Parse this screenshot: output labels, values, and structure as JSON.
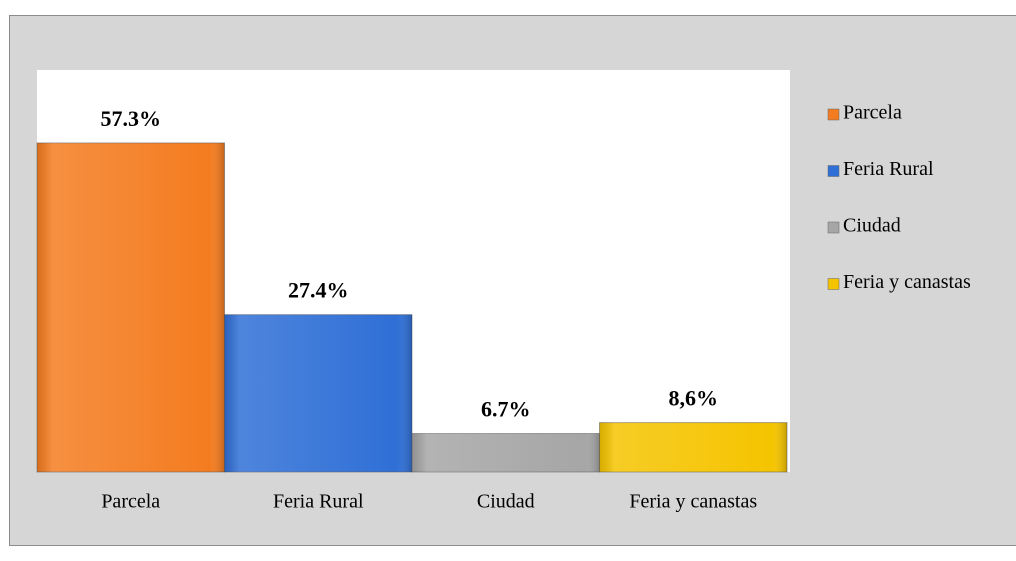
{
  "chart_data": {
    "type": "bar",
    "categories": [
      "Parcela",
      "Feria Rural",
      "Ciudad",
      "Feria y canastas"
    ],
    "values": [
      57.3,
      27.4,
      6.7,
      8.6
    ],
    "value_labels": [
      "57.3%",
      "27.4%",
      "6.7%",
      "8,6%"
    ],
    "colors": [
      "#f47c20",
      "#2f6fd6",
      "#a6a6a6",
      "#f5c400"
    ],
    "ylim": [
      0,
      70
    ],
    "legend": "right"
  }
}
